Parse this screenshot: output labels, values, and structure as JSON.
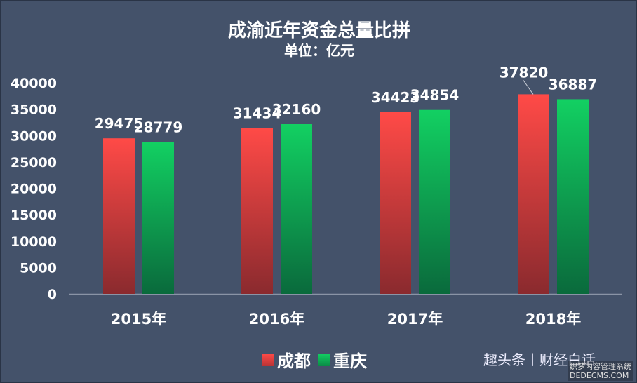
{
  "chart_data": {
    "type": "bar",
    "title": "成渝近年资金总量比拼",
    "subtitle": "单位：亿元",
    "categories": [
      "2015年",
      "2016年",
      "2017年",
      "2018年"
    ],
    "series": [
      {
        "name": "成都",
        "values": [
          29475,
          31434,
          34423,
          37820
        ]
      },
      {
        "name": "重庆",
        "values": [
          28779,
          32160,
          34854,
          36887
        ]
      }
    ],
    "ylim": [
      0,
      40000
    ],
    "yticks": [
      "0",
      "5000",
      "10000",
      "15000",
      "20000",
      "25000",
      "30000",
      "35000",
      "40000"
    ],
    "grid": false,
    "legend": "bottom",
    "colors": {
      "成都": "#e8413f",
      "重庆": "#10c25a"
    }
  },
  "watermark": "趣头条丨财经白话",
  "watermark2_lines": [
    "织梦内容管理系统",
    "DEDECMS.COM"
  ]
}
